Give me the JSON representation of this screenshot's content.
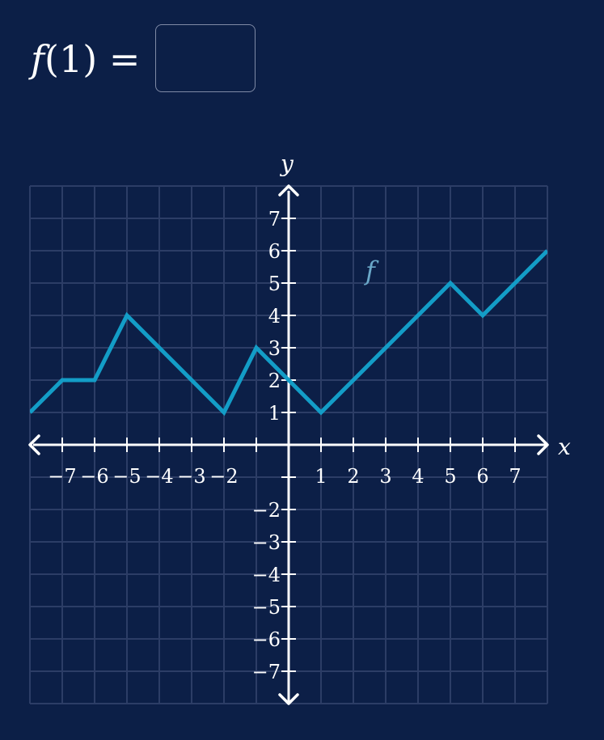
{
  "question": {
    "function_name": "f",
    "argument": "1",
    "answer_value": ""
  },
  "colors": {
    "background": "#0c1f47",
    "grid": "#2c3d66",
    "axis": "#ffffff",
    "function_line": "#139dc7",
    "function_label": "#6aa8c9"
  },
  "chart_data": {
    "type": "line",
    "xlabel": "x",
    "ylabel": "y",
    "xlim": [
      -8,
      8
    ],
    "ylim": [
      -8,
      8
    ],
    "grid": true,
    "x_ticks": [
      -7,
      -6,
      -5,
      -4,
      -3,
      -2,
      1,
      2,
      3,
      4,
      5,
      6,
      7
    ],
    "y_ticks": [
      -7,
      -6,
      -5,
      -4,
      -3,
      -2,
      1,
      2,
      3,
      4,
      5,
      6,
      7
    ],
    "series": [
      {
        "name": "f",
        "x": [
          -8,
          -7,
          -6,
          -5,
          -2,
          -1,
          1,
          5,
          6,
          8
        ],
        "y": [
          1,
          2,
          2,
          4,
          1,
          3,
          1,
          5,
          4,
          6
        ]
      }
    ]
  }
}
